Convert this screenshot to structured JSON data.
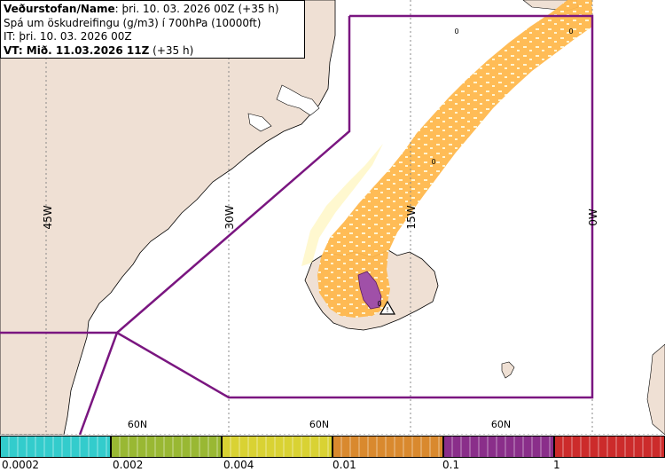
{
  "header": {
    "line1_bold": "Veðurstofan/Name",
    "line1_rest": ": þri. 10. 03. 2026 00Z (+35 h)",
    "line2": "Spá um öskudreifingu (g/m3) í 700hPa (10000ft)",
    "line3": "IT: þri. 10. 03. 2026 00Z",
    "line4_bold": "VT: Mið. 11.03.2026 11Z",
    "line4_rest": " (+35 h)"
  },
  "map": {
    "longitude_labels": [
      "45W",
      "30W",
      "15W",
      "0W"
    ],
    "latitude_labels": [
      "60N",
      "60N",
      "60N"
    ],
    "contour_labels": [
      "0",
      "0",
      "0",
      "0"
    ],
    "colors": {
      "ocean": "#ffffff",
      "land": "#efe0d4",
      "ash_low": "#ffb84d",
      "ash_purple": "#a050a8",
      "boundary": "#7a1680",
      "graticule": "#888888"
    },
    "volcano_marker": "triangle-warning-icon"
  },
  "legend": {
    "tick_labels": [
      "0.0002",
      "0.002",
      "0.004",
      "0.01",
      "0.1",
      "1"
    ],
    "colors": [
      "#33cccc",
      "#99b833",
      "#d9d233",
      "#d9892e",
      "#8a2e8a",
      "#cc2b2b"
    ]
  }
}
